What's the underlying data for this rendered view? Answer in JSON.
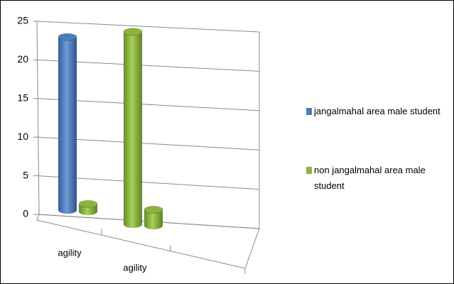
{
  "chart_data": {
    "type": "cylinder3d",
    "categories": [
      "agility",
      "agility"
    ],
    "series": [
      {
        "name": "jangalmahal area male student",
        "color": "#4a7ebb",
        "point_colors": [
          "#4a7ebb",
          "#8cb43c"
        ],
        "values": [
          23,
          24
        ]
      },
      {
        "name": "non jangalmahal area male student",
        "color": "#8cb43c",
        "point_colors": [
          "#8cb43c",
          "#8cb43c"
        ],
        "values": [
          1,
          2
        ]
      }
    ],
    "ylim": [
      0,
      25
    ],
    "yticks": [
      0,
      5,
      10,
      15,
      20,
      25
    ],
    "grid": true,
    "legend": "right"
  }
}
